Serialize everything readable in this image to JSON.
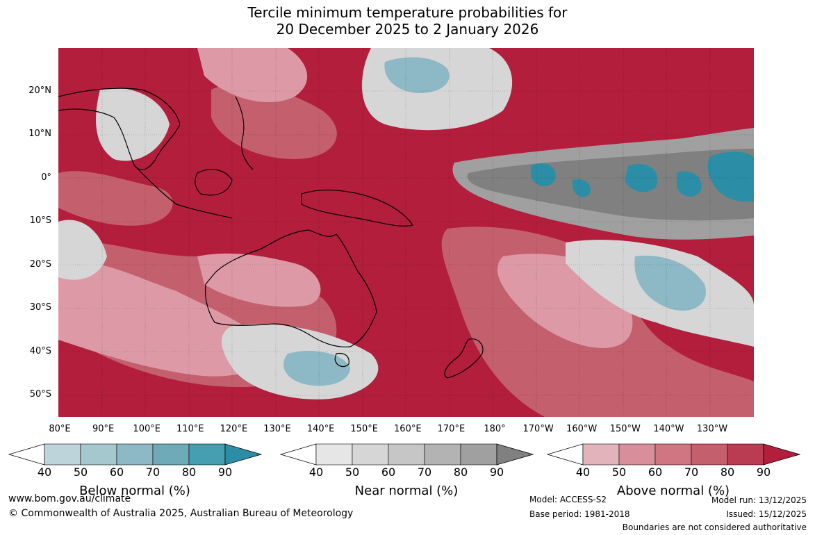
{
  "title_line1": "Tercile minimum temperature probabilities for",
  "title_line2": "20 December 2025 to 2 January 2026",
  "lat_labels": [
    "20°N",
    "10°N",
    "0°",
    "10°S",
    "20°S",
    "30°S",
    "40°S",
    "50°S"
  ],
  "lon_labels": [
    "80°E",
    "90°E",
    "100°E",
    "110°E",
    "120°E",
    "130°E",
    "140°E",
    "150°E",
    "160°E",
    "170°E",
    "180°",
    "170°W",
    "160°W",
    "150°W",
    "140°W",
    "130°W"
  ],
  "colorbars": [
    {
      "title": "Below normal (%)",
      "ticks": [
        "40",
        "50",
        "60",
        "70",
        "80",
        "90"
      ],
      "colors": [
        "#bcd4da",
        "#a5c8cf",
        "#8db8c5",
        "#6eaab8",
        "#459fb1",
        "#2b8ea6"
      ]
    },
    {
      "title": "Near normal (%)",
      "ticks": [
        "40",
        "50",
        "60",
        "70",
        "80",
        "90"
      ],
      "colors": [
        "#e6e6e6",
        "#d6d6d6",
        "#c6c6c6",
        "#b3b3b3",
        "#a0a0a0",
        "#808080"
      ]
    },
    {
      "title": "Above normal (%)",
      "ticks": [
        "40",
        "50",
        "60",
        "70",
        "80",
        "90"
      ],
      "colors": [
        "#e3b3bc",
        "#d88f9b",
        "#cf7682",
        "#c45f6e",
        "#b93c53",
        "#b21e3c"
      ]
    }
  ],
  "footer": {
    "url": "www.bom.gov.au/climate",
    "copyright": "© Commonwealth of Australia 2025, Australian Bureau of Meteorology",
    "model": "Model: ACCESS-S2",
    "base_period": "Base period: 1981-2018",
    "model_run": "Model run: 13/12/2025",
    "issued": "Issued: 15/12/2025",
    "disclaimer": "Boundaries are not considered authoritative"
  }
}
